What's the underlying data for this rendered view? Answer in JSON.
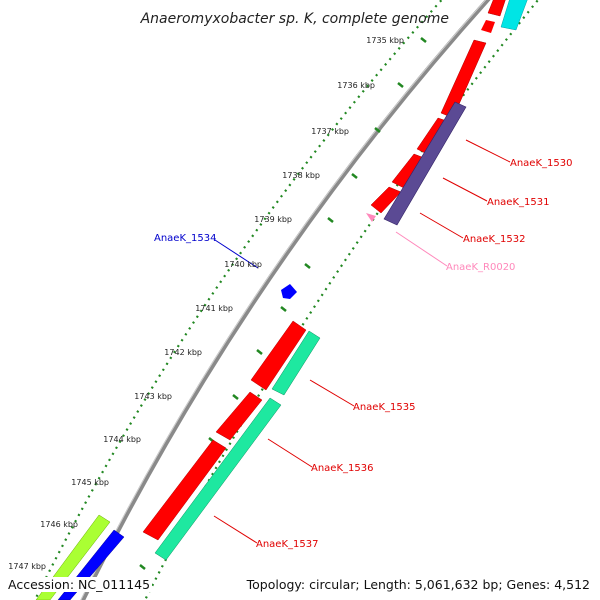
{
  "title": "Anaeromyxobacter sp. K, complete genome",
  "ticks": [
    {
      "label": "1735 kbp"
    },
    {
      "label": "1736 kbp"
    },
    {
      "label": "1737 kbp"
    },
    {
      "label": "1738 kbp"
    },
    {
      "label": "1739 kbp"
    },
    {
      "label": "1740 kbp"
    },
    {
      "label": "1741 kbp"
    },
    {
      "label": "1742 kbp"
    },
    {
      "label": "1743 kbp"
    },
    {
      "label": "1744 kbp"
    },
    {
      "label": "1745 kbp"
    },
    {
      "label": "1746 kbp"
    },
    {
      "label": "1747 kbp"
    }
  ],
  "gene_labels": [
    {
      "name": "AnaeK_1530",
      "color": "#e00000"
    },
    {
      "name": "AnaeK_1531",
      "color": "#e00000"
    },
    {
      "name": "AnaeK_1532",
      "color": "#e00000"
    },
    {
      "name": "AnaeK_R0020",
      "color": "#ff88bb"
    },
    {
      "name": "AnaeK_1534",
      "color": "#0000cc"
    },
    {
      "name": "AnaeK_1535",
      "color": "#e00000"
    },
    {
      "name": "AnaeK_1536",
      "color": "#e00000"
    },
    {
      "name": "AnaeK_1537",
      "color": "#e00000"
    }
  ],
  "feature_colors": {
    "cds": "#ff0000",
    "rrna_trna": "#ff88bb",
    "mid_blue": "#0000ff",
    "purple": "#5b4a94",
    "teal": "#1ee8a0",
    "cyan": "#00e5e5",
    "lime": "#aaff33"
  },
  "footer": {
    "accession": "Accession: NC_011145",
    "topology": "Topology: circular; Length: 5,061,632 bp; Genes: 4,512"
  }
}
